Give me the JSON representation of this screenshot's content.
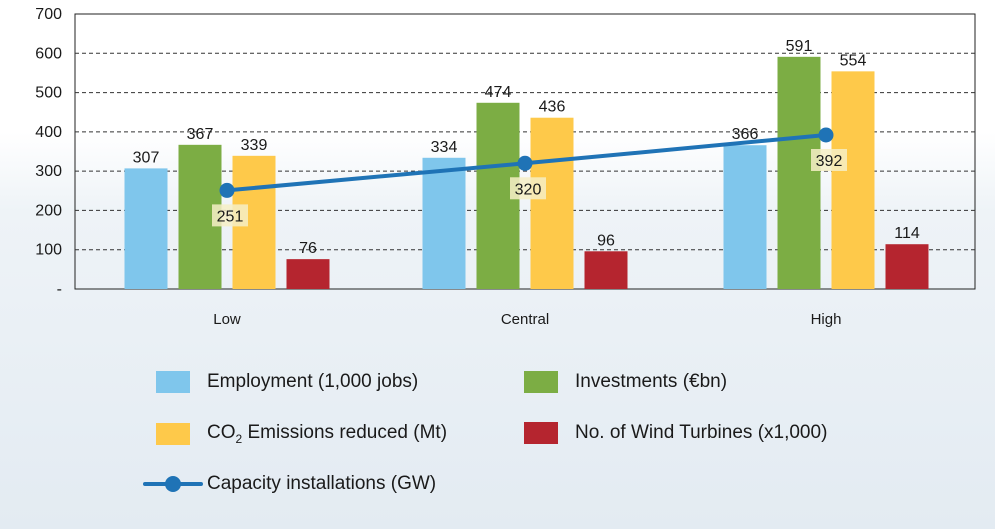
{
  "chart_data": {
    "type": "bar",
    "categories": [
      "Low",
      "Central",
      "High"
    ],
    "y_ticks": [
      "700",
      "600",
      "500",
      "400",
      "300",
      "200",
      "100",
      "-"
    ],
    "ylim": [
      0,
      700
    ],
    "grid": "dashed horizontal",
    "series": [
      {
        "name": "Employment (1,000 jobs)",
        "type": "bar",
        "color": "#7fc6ec",
        "values": [
          307,
          334,
          366
        ]
      },
      {
        "name": "Investments (€bn)",
        "type": "bar",
        "color": "#7cad44",
        "values": [
          367,
          474,
          591
        ]
      },
      {
        "name_parts": [
          "CO",
          "2",
          " Emissions reduced (Mt)"
        ],
        "type": "bar",
        "color": "#fec94a",
        "values": [
          339,
          436,
          554
        ]
      },
      {
        "name": "No. of Wind Turbines (x1,000)",
        "type": "bar",
        "color": "#b5252f",
        "values": [
          76,
          96,
          114
        ]
      },
      {
        "name": "Capacity installations (GW)",
        "type": "line",
        "color": "#1f73b6",
        "values": [
          251,
          320,
          392
        ]
      }
    ],
    "legend_position": "bottom"
  }
}
